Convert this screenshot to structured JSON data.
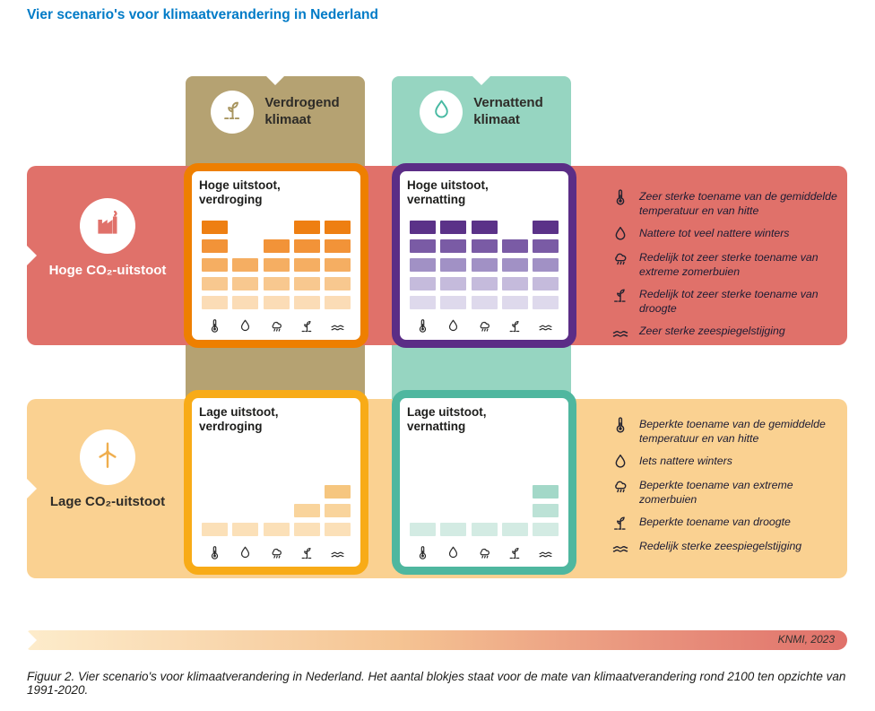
{
  "page": {
    "title": "Vier scenario's voor klimaatverandering in Nederland",
    "caption": "Figuur 2. Vier scenario's voor klimaatverandering in Nederland. Het aantal blokjes staat voor de mate van klimaatverandering rond 2100 ten opzichte van 1991-2020.",
    "source_label": "KNMI, 2023"
  },
  "columns": [
    {
      "label_line1": "Verdrogend",
      "label_line2": "klimaat",
      "color": "#b5a272",
      "icon": "drought-icon",
      "icon_color": "#a8955f"
    },
    {
      "label_line1": "Vernattend",
      "label_line2": "klimaat",
      "color": "#96d5c1",
      "icon": "droplet-icon",
      "icon_color": "#47b9a2"
    }
  ],
  "rows": [
    {
      "label": "Hoge CO₂-uitstoot",
      "color": "#e0716a",
      "icon": "factory-icon",
      "icon_color": "#e0716a",
      "text_color": "#ffffff"
    },
    {
      "label": "Lage CO₂-uitstoot",
      "color": "#fad191",
      "icon": "wind-turbine-icon",
      "icon_color": "#efae4e",
      "text_color": "#2e2c28"
    }
  ],
  "indicator_icons": [
    "thermometer-icon",
    "droplet-icon",
    "rain-cloud-icon",
    "drought-icon",
    "wave-icon"
  ],
  "cards": [
    {
      "title_line1": "Hoge uitstoot,",
      "title_line2": "verdroging",
      "border_color": "#ee7f00",
      "values": [
        5,
        3,
        4,
        5,
        5
      ],
      "ramp": [
        "#fbdcb6",
        "#f8c88f",
        "#f5ae62",
        "#f29338",
        "#ee7f12"
      ]
    },
    {
      "title_line1": "Hoge uitstoot,",
      "title_line2": "vernatting",
      "border_color": "#5b2d86",
      "values": [
        5,
        5,
        5,
        4,
        5
      ],
      "ramp": [
        "#ded9ec",
        "#c5bbdc",
        "#a191c5",
        "#7a5ba5",
        "#5b3288"
      ]
    },
    {
      "title_line1": "Lage uitstoot,",
      "title_line2": "verdroging",
      "border_color": "#f8ab17",
      "values": [
        1,
        1,
        1,
        2,
        3
      ],
      "ramp": [
        "#fbe0b8",
        "#f9d49c",
        "#f6c67f",
        "#f4b55e",
        "#f2a43c"
      ]
    },
    {
      "title_line1": "Lage uitstoot,",
      "title_line2": "vernatting",
      "border_color": "#4fb79f",
      "values": [
        1,
        1,
        1,
        1,
        3
      ],
      "ramp": [
        "#d3ebe3",
        "#bce2d6",
        "#a3d8c8",
        "#86ccb8",
        "#68bfa6"
      ]
    }
  ],
  "annotations": {
    "high": [
      {
        "icon": "thermometer-icon",
        "text": "Zeer sterke toename van de gemiddelde temperatuur en van hitte"
      },
      {
        "icon": "droplet-icon",
        "text": "Nattere tot veel nattere winters"
      },
      {
        "icon": "rain-cloud-icon",
        "text": "Redelijk tot zeer sterke toename van extreme zomerbuien"
      },
      {
        "icon": "drought-icon",
        "text": "Redelijk tot zeer sterke toename van droogte"
      },
      {
        "icon": "wave-icon",
        "text": "Zeer sterke zeespiegelstijging"
      }
    ],
    "low": [
      {
        "icon": "thermometer-icon",
        "text": "Beperkte toename van de gemiddelde temperatuur en van hitte"
      },
      {
        "icon": "droplet-icon",
        "text": "Iets nattere winters"
      },
      {
        "icon": "rain-cloud-icon",
        "text": "Beperkte toename van extreme zomerbuien"
      },
      {
        "icon": "drought-icon",
        "text": "Beperkte toename van droogte"
      },
      {
        "icon": "wave-icon",
        "text": "Redelijk sterke zeespiegelstijging"
      }
    ]
  }
}
